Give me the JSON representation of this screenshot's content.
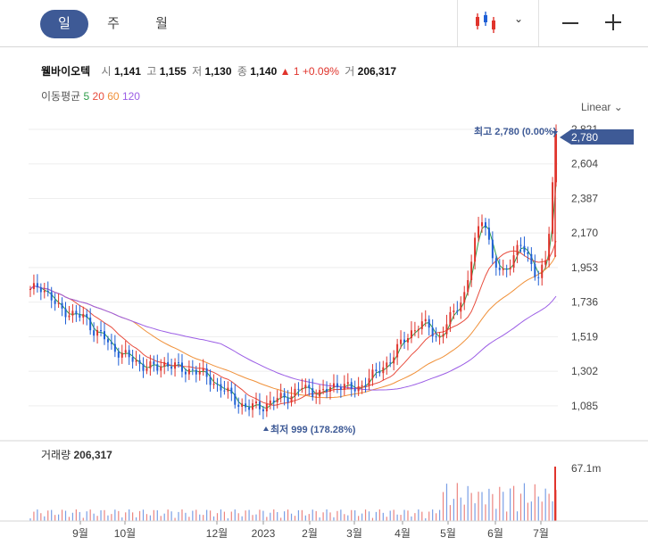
{
  "tabs": [
    {
      "label": "일",
      "active": true
    },
    {
      "label": "주",
      "active": false
    },
    {
      "label": "월",
      "active": false
    }
  ],
  "stock": {
    "name": "웰바이오텍",
    "open_label": "시",
    "open": "1,141",
    "high_label": "고",
    "high": "1,155",
    "low_label": "저",
    "low": "1,130",
    "close_label": "종",
    "close": "1,140",
    "change_arrow": "▲",
    "change": "1",
    "change_pct": "+0.09%",
    "volume_label": "거",
    "volume": "206,317"
  },
  "ma_legend": {
    "label": "이동평균",
    "items": [
      {
        "period": "5",
        "color": "#2e9d4a"
      },
      {
        "period": "20",
        "color": "#e84c3d"
      },
      {
        "period": "60",
        "color": "#f0913a"
      },
      {
        "period": "120",
        "color": "#9b5de5"
      }
    ]
  },
  "scale_label": "Linear",
  "max_marker": "최고 2,780 (0.00%)",
  "min_marker": "최저 999 (178.28%)",
  "current_price_tag": "2,780",
  "volume_panel": {
    "label": "거래량",
    "value": "206,317",
    "max_tick": "67.1m"
  },
  "colors": {
    "up": "#e0342c",
    "down": "#1f5fd6",
    "accent": "#3e5a96"
  },
  "chart_data": {
    "type": "candlestick",
    "y_ticks": [
      "2,821",
      "2,604",
      "2,387",
      "2,170",
      "1,953",
      "1,736",
      "1,519",
      "1,302",
      "1,085"
    ],
    "ylim": [
      1000,
      2821
    ],
    "x_ticks": [
      "9월",
      "10월",
      "12월",
      "2023",
      "2월",
      "3월",
      "4월",
      "5월",
      "6월",
      "7월"
    ],
    "series_close": [
      1800,
      1850,
      1780,
      1700,
      1680,
      1650,
      1640,
      1560,
      1520,
      1450,
      1420,
      1380,
      1350,
      1330,
      1320,
      1360,
      1330,
      1300,
      1320,
      1280,
      1240,
      1200,
      1150,
      1100,
      1070,
      1080,
      1090,
      1120,
      1140,
      1160,
      1200,
      1180,
      1160,
      1190,
      1230,
      1200,
      1180,
      1250,
      1280,
      1330,
      1400,
      1480,
      1550,
      1600,
      1580,
      1500,
      1600,
      1700,
      1800,
      2100,
      2300,
      2000,
      1900,
      2000,
      2100,
      2000,
      1900,
      2000,
      2780
    ],
    "highs": {
      "max": 2780,
      "min": 999
    }
  }
}
